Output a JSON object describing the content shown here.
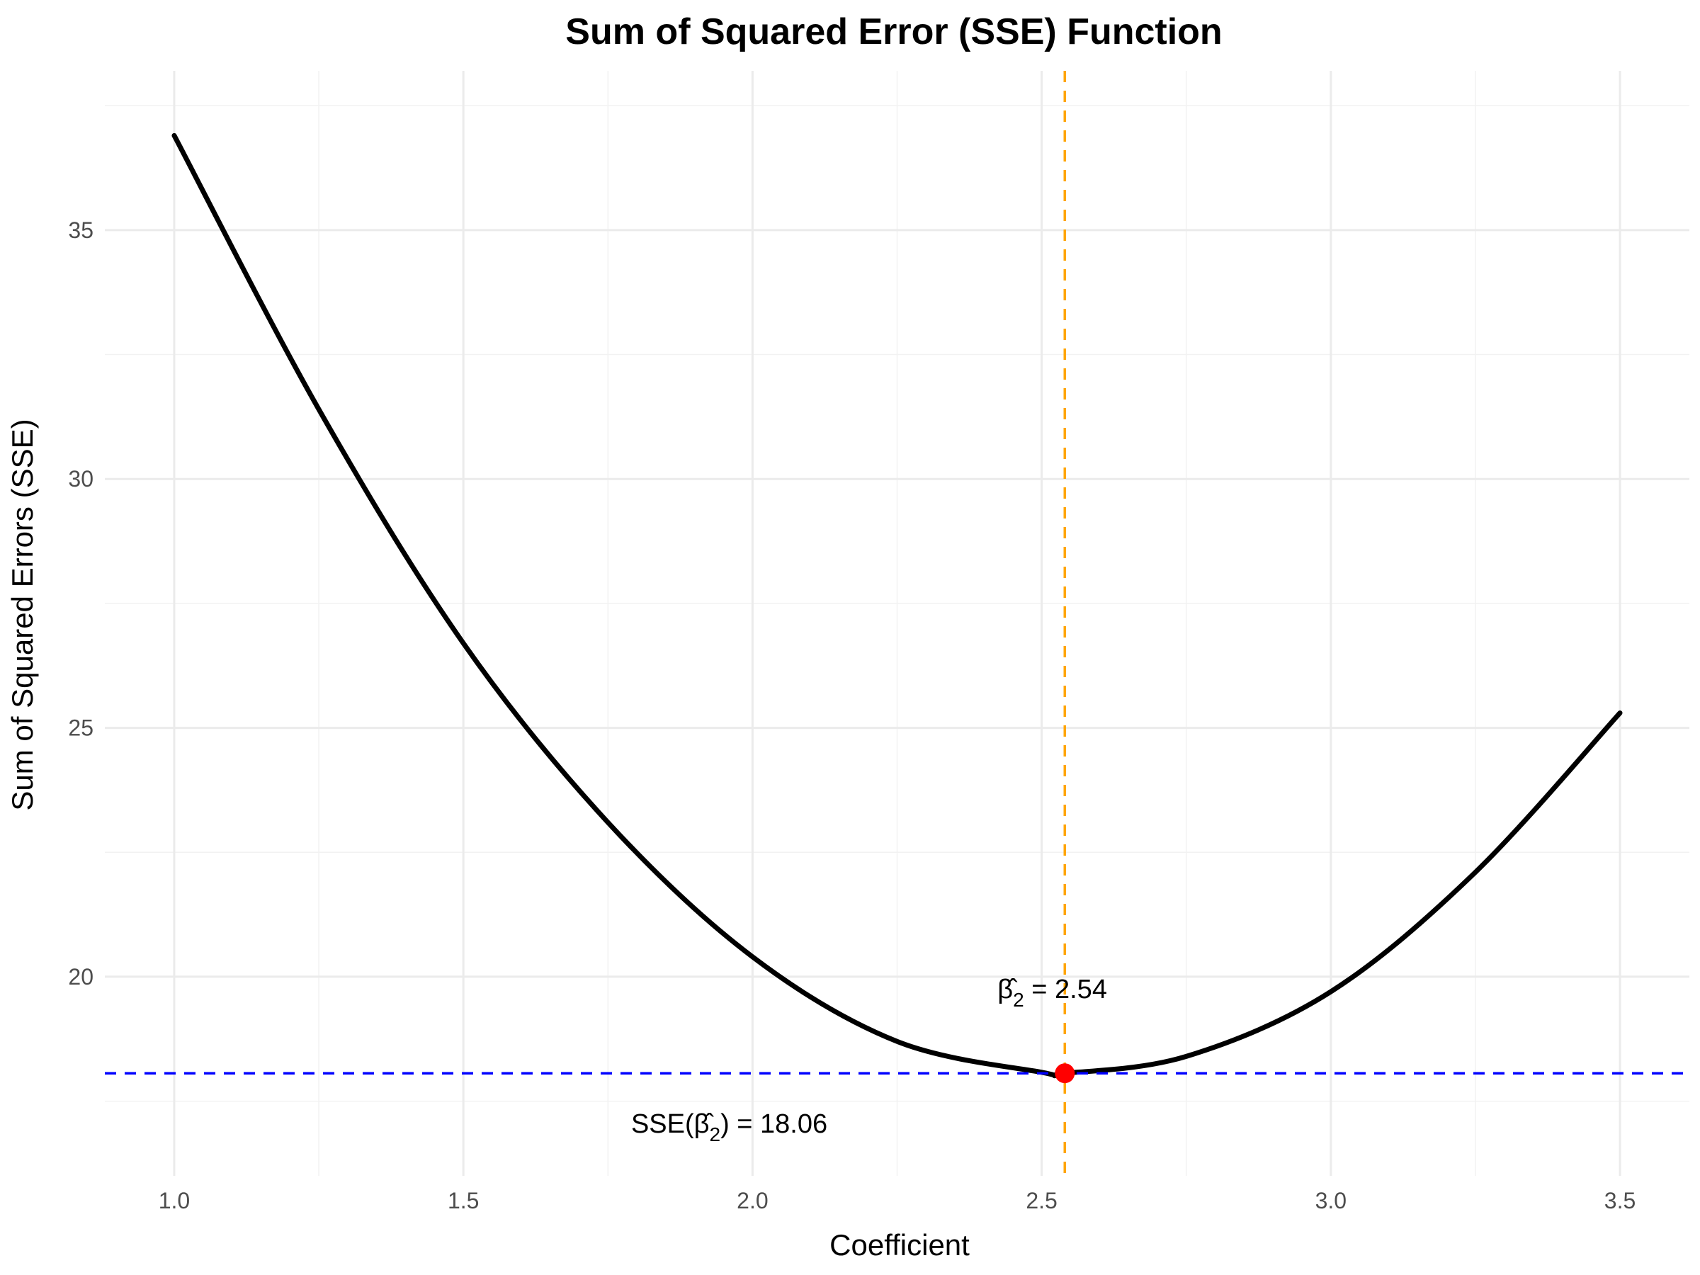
{
  "chart_data": {
    "type": "line",
    "title": "Sum of Squared Error (SSE) Function",
    "xlabel": "Coefficient",
    "ylabel": "Sum of Squared Errors (SSE)",
    "xlim": [
      0.88,
      3.62
    ],
    "ylim": [
      16.0,
      38.2
    ],
    "x_ticks": [
      1.0,
      1.5,
      2.0,
      2.5,
      3.0,
      3.5
    ],
    "x_tick_labels": [
      "1.0",
      "1.5",
      "2.0",
      "2.5",
      "3.0",
      "3.5"
    ],
    "y_ticks": [
      20,
      25,
      30,
      35
    ],
    "y_tick_labels": [
      "20",
      "25",
      "30",
      "35"
    ],
    "grid": true,
    "series": [
      {
        "color": "#000000",
        "x": [
          1.0,
          1.25,
          1.5,
          1.75,
          2.0,
          2.25,
          2.5,
          2.54,
          2.75,
          3.0,
          3.25,
          3.5
        ],
        "y": [
          36.9,
          31.4,
          26.7,
          23.1,
          20.4,
          18.7,
          18.08,
          18.06,
          18.4,
          19.7,
          22.1,
          25.3
        ]
      }
    ],
    "minimum_point": {
      "x": 2.54,
      "y": 18.06,
      "color": "#ff0000"
    },
    "vline": {
      "x": 2.54,
      "color": "#ffa500"
    },
    "hline": {
      "y": 18.06,
      "color": "#0000ff"
    },
    "annotations": {
      "beta_label": {
        "prefix": "β̂",
        "sub": "2",
        "suffix": " = 2.54"
      },
      "sse_label": {
        "prefix": "SSE(β̂",
        "sub": "2",
        "suffix": ") = 18.06"
      }
    }
  }
}
